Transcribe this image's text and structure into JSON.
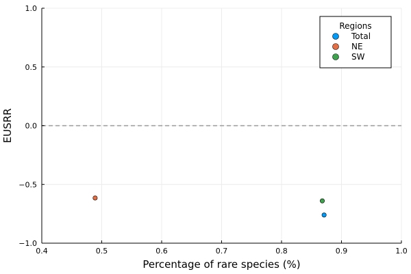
{
  "chart_data": {
    "type": "scatter",
    "title": "",
    "xlabel": "Percentage of rare species (%)",
    "ylabel": "EUSRR",
    "xlim": [
      0.4,
      1.0
    ],
    "ylim": [
      -1.0,
      1.0
    ],
    "xticks": [
      0.4,
      0.5,
      0.6,
      0.7,
      0.8,
      0.9,
      1.0
    ],
    "xtick_labels": [
      "0.4",
      "0.5",
      "0.6",
      "0.7",
      "0.8",
      "0.9",
      "1.0"
    ],
    "yticks": [
      -1.0,
      -0.5,
      0.0,
      0.5,
      1.0
    ],
    "ytick_labels": [
      "−1.0",
      "−0.5",
      "0.0",
      "0.5",
      "1.0"
    ],
    "grid": true,
    "reference_line": {
      "y": 0.0,
      "style": "dashed",
      "color": "#999999"
    },
    "legend": {
      "title": "Regions",
      "position": "top-right"
    },
    "series": [
      {
        "name": "Total",
        "color": "#009af9",
        "points": [
          {
            "x": 0.871,
            "y": -0.76
          }
        ]
      },
      {
        "name": "NE",
        "color": "#e26f46",
        "points": [
          {
            "x": 0.489,
            "y": -0.615
          }
        ]
      },
      {
        "name": "SW",
        "color": "#3da44d",
        "points": [
          {
            "x": 0.868,
            "y": -0.64
          }
        ]
      }
    ]
  }
}
